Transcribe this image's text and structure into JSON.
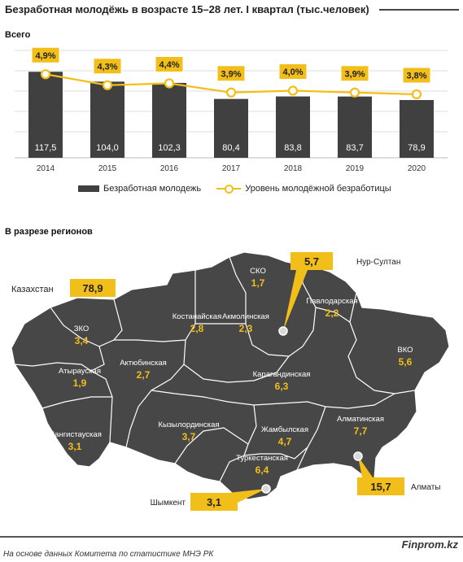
{
  "title": "Безработная молодёжь в возрасте 15–28  лет. I квартал (тыс.человек)",
  "total_label": "Всего",
  "regions_label": "В разрезе регионов",
  "legend": {
    "bars": "Безработная молодежь",
    "line": "Уровень молодёжной безработицы"
  },
  "chart_data": {
    "type": "bar",
    "categories": [
      "2014",
      "2015",
      "2016",
      "2017",
      "2018",
      "2019",
      "2020"
    ],
    "series": [
      {
        "name": "Безработная молодежь",
        "type": "bar",
        "values": [
          117.5,
          104.0,
          102.3,
          80.4,
          83.8,
          83.7,
          78.9
        ],
        "labels": [
          "117,5",
          "104,0",
          "102,3",
          "80,4",
          "83,8",
          "83,7",
          "78,9"
        ]
      },
      {
        "name": "Уровень молодёжной безработицы",
        "type": "line",
        "values": [
          4.9,
          4.3,
          4.4,
          3.9,
          4.0,
          3.9,
          3.8
        ],
        "labels": [
          "4,9%",
          "4,3%",
          "4,4%",
          "3,9%",
          "4,0%",
          "3,9%",
          "3,8%"
        ]
      }
    ],
    "grid": true,
    "legend_position": "bottom"
  },
  "map": {
    "country": {
      "name": "Казахстан",
      "value": "78,9"
    },
    "regions": [
      {
        "name": "СКО",
        "value": "1,7"
      },
      {
        "name": "Павлодарская",
        "value": "2,2"
      },
      {
        "name": "Акмолинская",
        "value": "2,3"
      },
      {
        "name": "Костанайская",
        "value": "2,8"
      },
      {
        "name": "ЗКО",
        "value": "3,4"
      },
      {
        "name": "ВКО",
        "value": "5,6"
      },
      {
        "name": "Актюбинская",
        "value": "2,7"
      },
      {
        "name": "Атырауская",
        "value": "1,9"
      },
      {
        "name": "Карагандинская",
        "value": "6,3"
      },
      {
        "name": "Мангистауская",
        "value": "3,1"
      },
      {
        "name": "Кызылординская",
        "value": "3,7"
      },
      {
        "name": "Жамбылская",
        "value": "4,7"
      },
      {
        "name": "Алматинская",
        "value": "7,7"
      },
      {
        "name": "Туркестанская",
        "value": "6,4"
      }
    ],
    "cities": [
      {
        "name": "Нур-Султан",
        "value": "5,7"
      },
      {
        "name": "Алматы",
        "value": "15,7"
      },
      {
        "name": "Шымкент",
        "value": "3,1"
      }
    ]
  },
  "colors": {
    "bar": "#404040",
    "line": "#f2bf1a",
    "label_bg": "#f2bf1a",
    "map": "#474747"
  },
  "source": "На основе данных  Комитета по статистике МНЭ РК",
  "brand": "Finprom.kz"
}
